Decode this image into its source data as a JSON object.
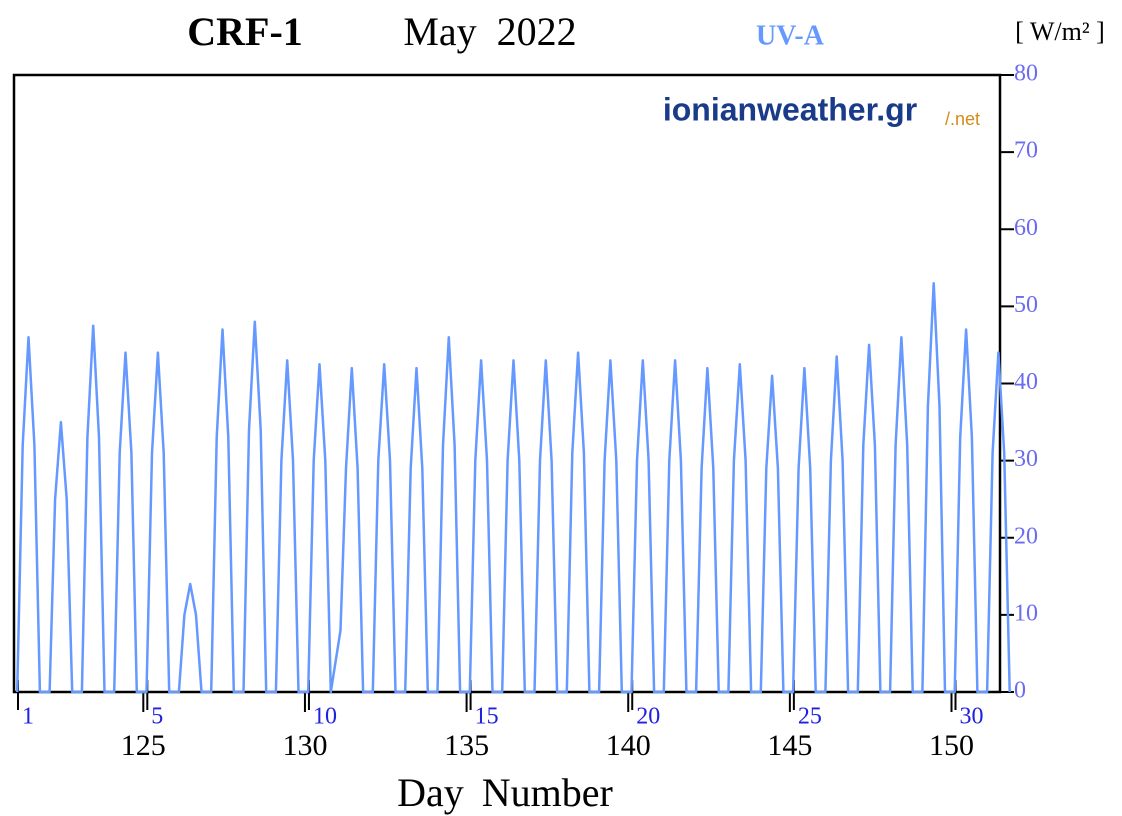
{
  "chart_data": {
    "type": "line",
    "title": "CRF-1",
    "subtitle": "May  2022",
    "ylabel": "[ W/m² ]",
    "xlabel": "Day Number",
    "annotations": [
      "ionianweather.gr",
      "/.net"
    ],
    "xlim": [
      121,
      151.5
    ],
    "ylim": [
      0,
      80
    ],
    "xticks": [
      125,
      130,
      135,
      140,
      145,
      150
    ],
    "x2ticks": [
      {
        "value": 121,
        "label": "1"
      },
      {
        "value": 125,
        "label": "5"
      },
      {
        "value": 130,
        "label": "10"
      },
      {
        "value": 135,
        "label": "15"
      },
      {
        "value": 140,
        "label": "20"
      },
      {
        "value": 145,
        "label": "25"
      },
      {
        "value": 150,
        "label": "30"
      }
    ],
    "yticks": [
      0,
      10,
      20,
      30,
      40,
      50,
      60,
      70,
      80
    ],
    "series": [
      {
        "name": "UV-A",
        "color": "#6699ff",
        "x": [
          121.1,
          121.27,
          121.45,
          121.63,
          121.8,
          122.1,
          122.27,
          122.45,
          122.63,
          122.8,
          123.1,
          123.27,
          123.45,
          123.63,
          123.8,
          124.1,
          124.27,
          124.45,
          124.63,
          124.8,
          125.1,
          125.27,
          125.45,
          125.63,
          125.8,
          126.1,
          126.27,
          126.45,
          126.63,
          126.8,
          127.1,
          127.27,
          127.45,
          127.63,
          127.8,
          128.1,
          128.27,
          128.45,
          128.63,
          128.8,
          129.1,
          129.27,
          129.45,
          129.63,
          129.8,
          130.1,
          130.27,
          130.45,
          130.63,
          130.8,
          131.1,
          131.27,
          131.45,
          131.63,
          131.8,
          132.1,
          132.27,
          132.45,
          132.63,
          132.8,
          133.1,
          133.27,
          133.45,
          133.63,
          133.8,
          134.1,
          134.27,
          134.45,
          134.63,
          134.8,
          135.1,
          135.27,
          135.45,
          135.63,
          135.8,
          136.1,
          136.27,
          136.45,
          136.63,
          136.8,
          137.1,
          137.27,
          137.45,
          137.63,
          137.8,
          138.1,
          138.27,
          138.45,
          138.63,
          138.8,
          139.1,
          139.27,
          139.45,
          139.63,
          139.8,
          140.1,
          140.27,
          140.45,
          140.63,
          140.8,
          141.1,
          141.27,
          141.45,
          141.63,
          141.8,
          142.1,
          142.27,
          142.45,
          142.63,
          142.8,
          143.1,
          143.27,
          143.45,
          143.63,
          143.8,
          144.1,
          144.27,
          144.45,
          144.63,
          144.8,
          145.1,
          145.27,
          145.45,
          145.63,
          145.8,
          146.1,
          146.27,
          146.45,
          146.63,
          146.8,
          147.1,
          147.27,
          147.45,
          147.63,
          147.8,
          148.1,
          148.27,
          148.45,
          148.63,
          148.8,
          149.1,
          149.27,
          149.45,
          149.63,
          149.8,
          150.1,
          150.27,
          150.45,
          150.63,
          150.8,
          151.1,
          151.27,
          151.45,
          151.63,
          151.8
        ],
        "values": [
          0,
          32,
          46,
          32,
          0,
          0,
          25,
          35,
          25,
          0,
          0,
          33,
          47.5,
          33,
          0,
          0,
          31,
          44,
          31,
          0,
          0,
          31,
          44,
          31,
          0,
          0,
          10,
          14,
          10,
          0,
          0,
          33,
          47,
          33,
          0,
          0,
          34,
          48,
          34,
          0,
          0,
          30,
          43,
          30,
          0,
          0,
          30,
          42.5,
          30,
          0,
          8,
          29,
          42,
          29,
          0,
          0,
          30,
          42.5,
          30,
          0,
          0,
          29,
          42,
          29,
          0,
          0,
          32,
          46,
          32,
          0,
          0,
          30,
          43,
          30,
          0,
          0,
          30,
          43,
          30,
          0,
          0,
          30,
          43,
          30,
          0,
          0,
          31,
          44,
          31,
          0,
          0,
          30,
          43,
          30,
          0,
          0,
          30,
          43,
          30,
          0,
          0,
          30,
          43,
          30,
          0,
          0,
          29,
          42,
          29,
          0,
          0,
          30,
          42.5,
          30,
          0,
          0,
          29,
          41,
          29,
          0,
          0,
          29,
          42,
          29,
          0,
          0,
          30,
          43.5,
          30,
          0,
          0,
          32,
          45,
          32,
          0,
          0,
          32,
          46,
          32,
          0,
          0,
          37,
          53,
          37,
          0,
          0,
          33,
          47,
          33,
          0,
          0,
          31,
          44,
          31,
          0
        ]
      }
    ]
  }
}
